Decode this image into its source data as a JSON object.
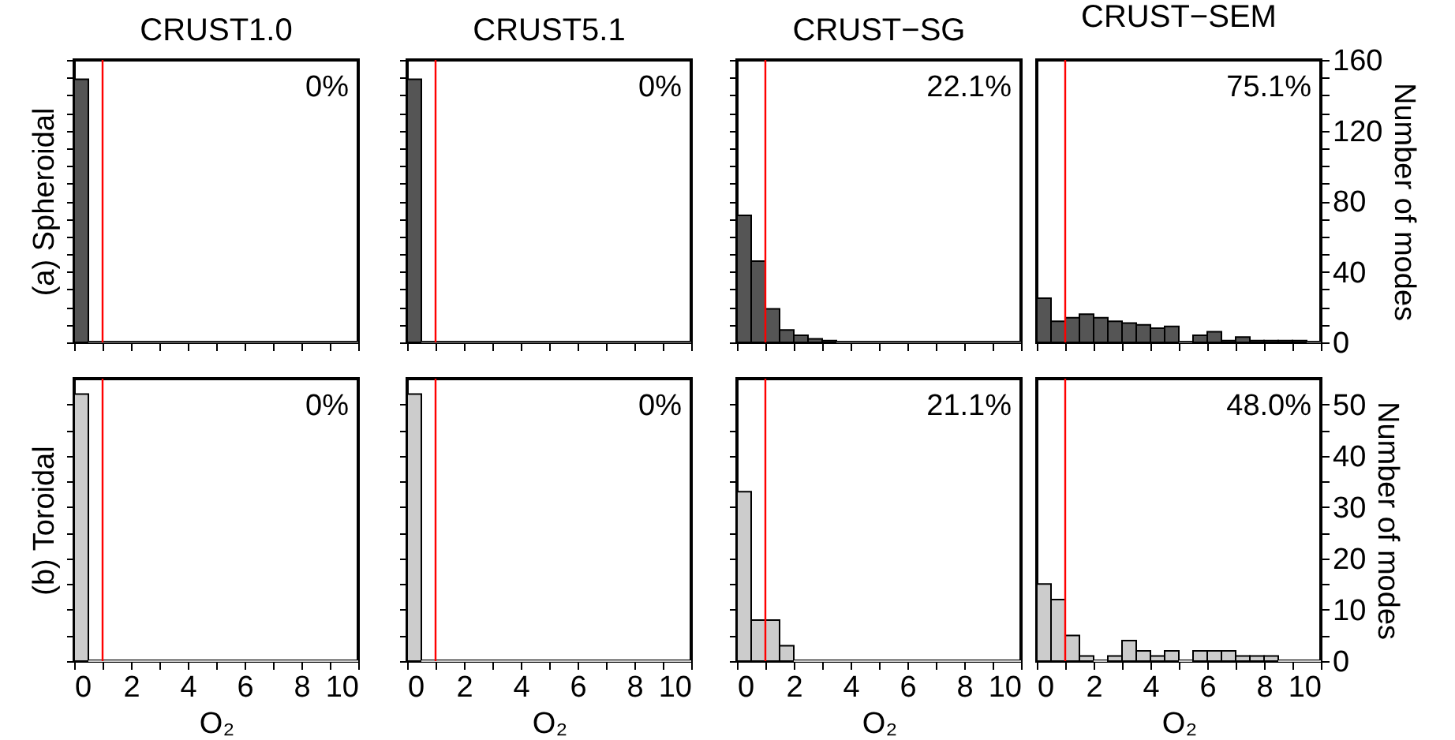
{
  "chart_data": [
    {
      "type": "histogram",
      "title": "CRUST1.0",
      "ylabel": "(a) Spheroidal",
      "annotations": [
        "0%"
      ],
      "color": "#555555",
      "bins": [
        0,
        0.5,
        1,
        1.5,
        2,
        2.5,
        3,
        3.5,
        4,
        4.5,
        5,
        5.5,
        6,
        6.5,
        7,
        7.5,
        8,
        8.5,
        9,
        9.5,
        10
      ],
      "values": [
        149,
        0,
        0,
        0,
        0,
        0,
        0,
        0,
        0,
        0,
        0,
        0,
        0,
        0,
        0,
        0,
        0,
        0,
        0,
        0
      ],
      "xlim": [
        0,
        10
      ],
      "xticks": [
        0,
        {
          "value": 1,
          "label": null
        },
        2,
        {
          "value": 3,
          "label": null
        },
        4,
        {
          "value": 5,
          "label": null
        },
        6,
        {
          "value": 7,
          "label": null
        },
        8,
        {
          "value": 9,
          "label": null
        },
        10
      ],
      "ylim": [
        0,
        160
      ],
      "yticks": [
        0,
        {
          "value": 10,
          "label": null
        },
        {
          "value": 20,
          "label": null
        },
        {
          "value": 30,
          "label": null
        },
        40,
        {
          "value": 50,
          "label": null
        },
        {
          "value": 60,
          "label": null
        },
        {
          "value": 70,
          "label": null
        },
        80,
        {
          "value": 90,
          "label": null
        },
        {
          "value": 100,
          "label": null
        },
        {
          "value": 110,
          "label": null
        },
        120,
        {
          "value": 130,
          "label": null
        },
        {
          "value": 140,
          "label": null
        },
        {
          "value": 150,
          "label": null
        },
        160
      ],
      "ref_lines": [
        {
          "axis": "x",
          "value": 1,
          "color": "#ff0000"
        }
      ],
      "tick_labels": false
    },
    {
      "type": "histogram",
      "title": "CRUST5.1",
      "annotations": [
        "0%"
      ],
      "color": "#555555",
      "bins": [
        0,
        0.5,
        1,
        1.5,
        2,
        2.5,
        3,
        3.5,
        4,
        4.5,
        5,
        5.5,
        6,
        6.5,
        7,
        7.5,
        8,
        8.5,
        9,
        9.5,
        10
      ],
      "values": [
        149,
        0,
        0,
        0,
        0,
        0,
        0,
        0,
        0,
        0,
        0,
        0,
        0,
        0,
        0,
        0,
        0,
        0,
        0,
        0
      ],
      "xlim": [
        0,
        10
      ],
      "xticks": [
        0,
        {
          "value": 1,
          "label": null
        },
        2,
        {
          "value": 3,
          "label": null
        },
        4,
        {
          "value": 5,
          "label": null
        },
        6,
        {
          "value": 7,
          "label": null
        },
        8,
        {
          "value": 9,
          "label": null
        },
        10
      ],
      "ylim": [
        0,
        160
      ],
      "yticks": [
        0,
        {
          "value": 10,
          "label": null
        },
        {
          "value": 20,
          "label": null
        },
        {
          "value": 30,
          "label": null
        },
        40,
        {
          "value": 50,
          "label": null
        },
        {
          "value": 60,
          "label": null
        },
        {
          "value": 70,
          "label": null
        },
        80,
        {
          "value": 90,
          "label": null
        },
        {
          "value": 100,
          "label": null
        },
        {
          "value": 110,
          "label": null
        },
        120,
        {
          "value": 130,
          "label": null
        },
        {
          "value": 140,
          "label": null
        },
        {
          "value": 150,
          "label": null
        },
        160
      ],
      "ref_lines": [
        {
          "axis": "x",
          "value": 1,
          "color": "#ff0000"
        }
      ],
      "tick_labels": false
    },
    {
      "type": "histogram",
      "title": "CRUST−SG",
      "annotations": [
        "22.1%"
      ],
      "color": "#555555",
      "bins": [
        0,
        0.5,
        1,
        1.5,
        2,
        2.5,
        3,
        3.5,
        4,
        4.5,
        5,
        5.5,
        6,
        6.5,
        7,
        7.5,
        8,
        8.5,
        9,
        9.5,
        10
      ],
      "values": [
        72,
        46,
        19,
        7,
        4,
        2,
        1,
        0,
        0,
        0,
        0,
        0,
        0,
        0,
        0,
        0,
        0,
        0,
        0,
        0
      ],
      "xlim": [
        0,
        10
      ],
      "xticks": [
        0,
        {
          "value": 1,
          "label": null
        },
        2,
        {
          "value": 3,
          "label": null
        },
        4,
        {
          "value": 5,
          "label": null
        },
        6,
        {
          "value": 7,
          "label": null
        },
        8,
        {
          "value": 9,
          "label": null
        },
        10
      ],
      "ylim": [
        0,
        160
      ],
      "yticks": [
        0,
        {
          "value": 10,
          "label": null
        },
        {
          "value": 20,
          "label": null
        },
        {
          "value": 30,
          "label": null
        },
        40,
        {
          "value": 50,
          "label": null
        },
        {
          "value": 60,
          "label": null
        },
        {
          "value": 70,
          "label": null
        },
        80,
        {
          "value": 90,
          "label": null
        },
        {
          "value": 100,
          "label": null
        },
        {
          "value": 110,
          "label": null
        },
        120,
        {
          "value": 130,
          "label": null
        },
        {
          "value": 140,
          "label": null
        },
        {
          "value": 150,
          "label": null
        },
        160
      ],
      "ref_lines": [
        {
          "axis": "x",
          "value": 1,
          "color": "#ff0000"
        }
      ],
      "tick_labels": false
    },
    {
      "type": "histogram",
      "title": "CRUST−SEM",
      "ylabel": "Number of modes",
      "annotations": [
        "75.1%"
      ],
      "color": "#555555",
      "bins": [
        0,
        0.5,
        1,
        1.5,
        2,
        2.5,
        3,
        3.5,
        4,
        4.5,
        5,
        5.5,
        6,
        6.5,
        7,
        7.5,
        8,
        8.5,
        9,
        9.5,
        10
      ],
      "values": [
        25,
        12,
        14,
        16,
        14,
        12,
        11,
        10,
        8,
        9,
        0,
        4,
        6,
        1,
        3,
        1,
        1,
        1,
        1,
        0
      ],
      "xlim": [
        0,
        10
      ],
      "xticks": [
        0,
        {
          "value": 1,
          "label": null
        },
        2,
        {
          "value": 3,
          "label": null
        },
        4,
        {
          "value": 5,
          "label": null
        },
        6,
        {
          "value": 7,
          "label": null
        },
        8,
        {
          "value": 9,
          "label": null
        },
        10
      ],
      "ylim": [
        0,
        160
      ],
      "yticks": [
        0,
        {
          "value": 10,
          "label": null
        },
        {
          "value": 20,
          "label": null
        },
        {
          "value": 30,
          "label": null
        },
        40,
        {
          "value": 50,
          "label": null
        },
        {
          "value": 60,
          "label": null
        },
        {
          "value": 70,
          "label": null
        },
        80,
        {
          "value": 90,
          "label": null
        },
        {
          "value": 100,
          "label": null
        },
        {
          "value": 110,
          "label": null
        },
        120,
        {
          "value": 130,
          "label": null
        },
        {
          "value": 140,
          "label": null
        },
        {
          "value": 150,
          "label": null
        },
        160
      ],
      "ref_lines": [
        {
          "axis": "x",
          "value": 1,
          "color": "#ff0000"
        }
      ],
      "tick_labels": "y"
    },
    {
      "type": "histogram",
      "ylabel": "(b) Toroidal",
      "xlabel": "O₂",
      "annotations": [
        "0%"
      ],
      "color": "#cccccc",
      "bins": [
        0,
        0.5,
        1,
        1.5,
        2,
        2.5,
        3,
        3.5,
        4,
        4.5,
        5,
        5.5,
        6,
        6.5,
        7,
        7.5,
        8,
        8.5,
        9,
        9.5,
        10
      ],
      "values": [
        52,
        0,
        0,
        0,
        0,
        0,
        0,
        0,
        0,
        0,
        0,
        0,
        0,
        0,
        0,
        0,
        0,
        0,
        0,
        0
      ],
      "xlim": [
        0,
        10
      ],
      "xticks": [
        0,
        {
          "value": 1,
          "label": null
        },
        2,
        {
          "value": 3,
          "label": null
        },
        4,
        {
          "value": 5,
          "label": null
        },
        6,
        {
          "value": 7,
          "label": null
        },
        8,
        {
          "value": 9,
          "label": null
        },
        10
      ],
      "ylim": [
        0,
        55
      ],
      "yticks": [
        0,
        {
          "value": 5,
          "label": null
        },
        10,
        {
          "value": 15,
          "label": null
        },
        20,
        {
          "value": 25,
          "label": null
        },
        30,
        {
          "value": 35,
          "label": null
        },
        40,
        {
          "value": 45,
          "label": null
        },
        50
      ],
      "ref_lines": [
        {
          "axis": "x",
          "value": 1,
          "color": "#ff0000"
        }
      ],
      "tick_labels": "x"
    },
    {
      "type": "histogram",
      "xlabel": "O₂",
      "annotations": [
        "0%"
      ],
      "color": "#cccccc",
      "bins": [
        0,
        0.5,
        1,
        1.5,
        2,
        2.5,
        3,
        3.5,
        4,
        4.5,
        5,
        5.5,
        6,
        6.5,
        7,
        7.5,
        8,
        8.5,
        9,
        9.5,
        10
      ],
      "values": [
        52,
        0,
        0,
        0,
        0,
        0,
        0,
        0,
        0,
        0,
        0,
        0,
        0,
        0,
        0,
        0,
        0,
        0,
        0,
        0
      ],
      "xlim": [
        0,
        10
      ],
      "xticks": [
        0,
        {
          "value": 1,
          "label": null
        },
        2,
        {
          "value": 3,
          "label": null
        },
        4,
        {
          "value": 5,
          "label": null
        },
        6,
        {
          "value": 7,
          "label": null
        },
        8,
        {
          "value": 9,
          "label": null
        },
        10
      ],
      "ylim": [
        0,
        55
      ],
      "yticks": [
        0,
        {
          "value": 5,
          "label": null
        },
        10,
        {
          "value": 15,
          "label": null
        },
        20,
        {
          "value": 25,
          "label": null
        },
        30,
        {
          "value": 35,
          "label": null
        },
        40,
        {
          "value": 45,
          "label": null
        },
        50
      ],
      "ref_lines": [
        {
          "axis": "x",
          "value": 1,
          "color": "#ff0000"
        }
      ],
      "tick_labels": "x"
    },
    {
      "type": "histogram",
      "xlabel": "O₂",
      "annotations": [
        "21.1%"
      ],
      "color": "#cccccc",
      "bins": [
        0,
        0.5,
        1,
        1.5,
        2,
        2.5,
        3,
        3.5,
        4,
        4.5,
        5,
        5.5,
        6,
        6.5,
        7,
        7.5,
        8,
        8.5,
        9,
        9.5,
        10
      ],
      "values": [
        33,
        8,
        8,
        3,
        0,
        0,
        0,
        0,
        0,
        0,
        0,
        0,
        0,
        0,
        0,
        0,
        0,
        0,
        0,
        0
      ],
      "xlim": [
        0,
        10
      ],
      "xticks": [
        0,
        {
          "value": 1,
          "label": null
        },
        2,
        {
          "value": 3,
          "label": null
        },
        4,
        {
          "value": 5,
          "label": null
        },
        6,
        {
          "value": 7,
          "label": null
        },
        8,
        {
          "value": 9,
          "label": null
        },
        10
      ],
      "ylim": [
        0,
        55
      ],
      "yticks": [
        0,
        {
          "value": 5,
          "label": null
        },
        10,
        {
          "value": 15,
          "label": null
        },
        20,
        {
          "value": 25,
          "label": null
        },
        30,
        {
          "value": 35,
          "label": null
        },
        40,
        {
          "value": 45,
          "label": null
        },
        50
      ],
      "ref_lines": [
        {
          "axis": "x",
          "value": 1,
          "color": "#ff0000"
        }
      ],
      "tick_labels": "x"
    },
    {
      "type": "histogram",
      "xlabel": "O₂",
      "ylabel": "Number of modes",
      "annotations": [
        "48.0%"
      ],
      "color": "#cccccc",
      "bins": [
        0,
        0.5,
        1,
        1.5,
        2,
        2.5,
        3,
        3.5,
        4,
        4.5,
        5,
        5.5,
        6,
        6.5,
        7,
        7.5,
        8,
        8.5,
        9,
        9.5,
        10
      ],
      "values": [
        15,
        12,
        5,
        1,
        0,
        1,
        4,
        2,
        1,
        2,
        0,
        2,
        2,
        2,
        1,
        1,
        1,
        0,
        0,
        0
      ],
      "xlim": [
        0,
        10
      ],
      "xticks": [
        0,
        {
          "value": 1,
          "label": null
        },
        2,
        {
          "value": 3,
          "label": null
        },
        4,
        {
          "value": 5,
          "label": null
        },
        6,
        {
          "value": 7,
          "label": null
        },
        8,
        {
          "value": 9,
          "label": null
        },
        10
      ],
      "ylim": [
        0,
        55
      ],
      "yticks": [
        0,
        {
          "value": 5,
          "label": null
        },
        10,
        {
          "value": 15,
          "label": null
        },
        20,
        {
          "value": 25,
          "label": null
        },
        30,
        {
          "value": 35,
          "label": null
        },
        40,
        {
          "value": 45,
          "label": null
        },
        50
      ],
      "ref_lines": [
        {
          "axis": "x",
          "value": 1,
          "color": "#ff0000"
        }
      ]
    }
  ]
}
